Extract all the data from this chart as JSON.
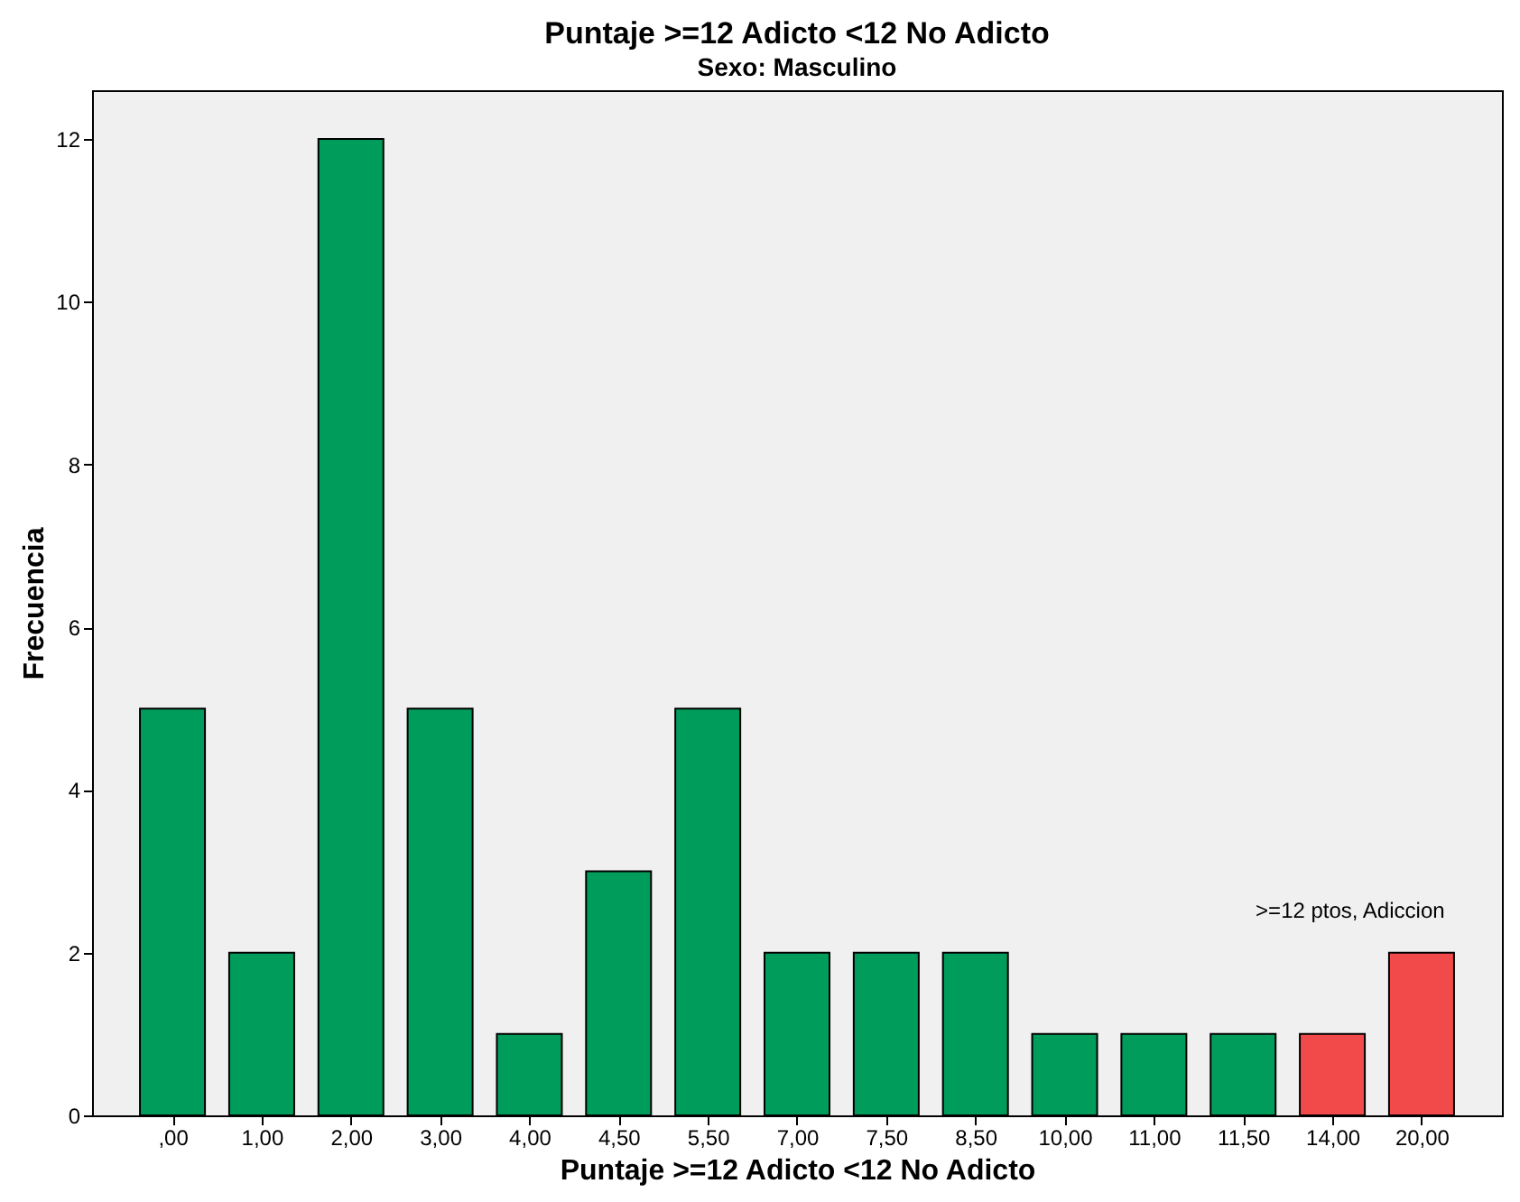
{
  "chart_data": {
    "type": "bar",
    "title": "Puntaje >=12 Adicto <12 No Adicto",
    "subtitle": "Sexo: Masculino",
    "xlabel": "Puntaje >=12 Adicto <12 No Adicto",
    "ylabel": "Frecuencia",
    "categories": [
      ",00",
      "1,00",
      "2,00",
      "3,00",
      "4,00",
      "4,50",
      "5,50",
      "7,00",
      "7,50",
      "8,50",
      "10,00",
      "11,00",
      "11,50",
      "14,00",
      "20,00"
    ],
    "values": [
      5,
      2,
      12,
      5,
      1,
      3,
      5,
      2,
      2,
      2,
      1,
      1,
      1,
      1,
      2
    ],
    "colors": [
      "#009c5b",
      "#009c5b",
      "#009c5b",
      "#009c5b",
      "#009c5b",
      "#009c5b",
      "#009c5b",
      "#009c5b",
      "#009c5b",
      "#009c5b",
      "#009c5b",
      "#009c5b",
      "#009c5b",
      "#f24a4a",
      "#f24a4a"
    ],
    "ylim": [
      0,
      12.6
    ],
    "yticks": [
      0,
      2,
      4,
      6,
      8,
      10,
      12
    ],
    "grid": false,
    "annotations": [
      ">=12 ptos, Adiccion"
    ]
  }
}
